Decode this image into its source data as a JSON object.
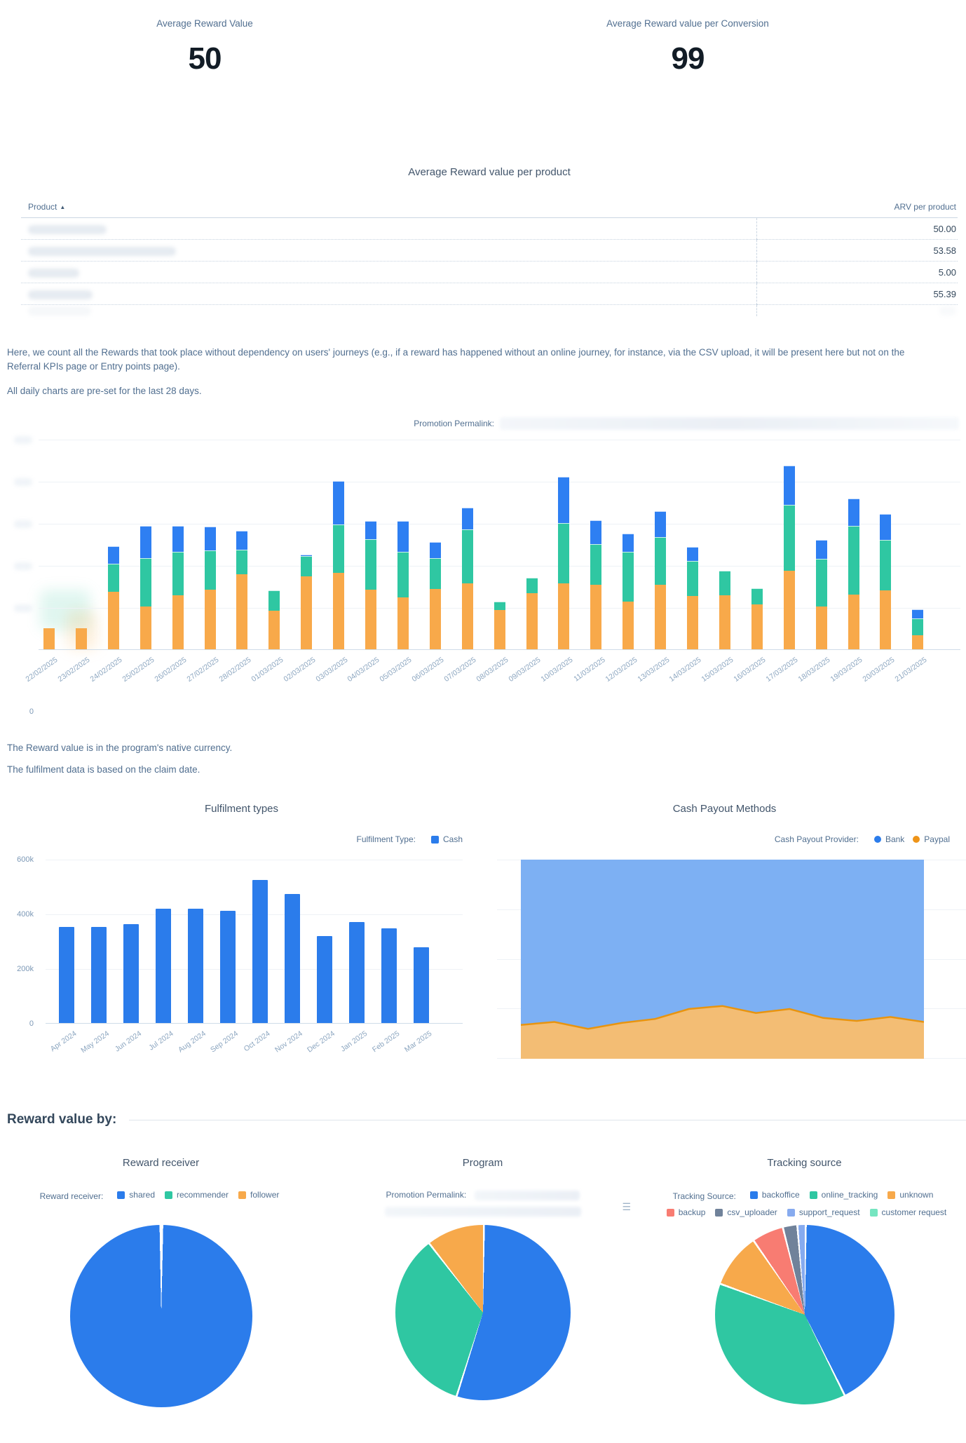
{
  "kpis": [
    {
      "label": "Average Reward Value",
      "value": "50"
    },
    {
      "label": "Average Reward value per Conversion",
      "value": "99"
    }
  ],
  "product_table": {
    "title": "Average Reward value per product",
    "col_product": "Product",
    "col_arv": "ARV per product",
    "sort_caret": "▲",
    "rows": [
      {
        "product_redacted": true,
        "blur_w": 112,
        "arv": "50.00"
      },
      {
        "product_redacted": true,
        "blur_w": 211,
        "arv": "53.58"
      },
      {
        "product_redacted": true,
        "blur_w": 73,
        "arv": "5.00"
      },
      {
        "product_redacted": true,
        "blur_w": 92,
        "arv": "55.39"
      }
    ],
    "extra_row_redacted": true
  },
  "intro": {
    "p1": "Here, we count all the Rewards that took place without dependency on users' journeys (e.g., if a reward has happened without an online journey, for instance, via the CSV upload, it will be present here but not on the Referral KPIs page or Entry points page).",
    "p2": "All daily charts are pre-set for the last 28 days."
  },
  "notes": {
    "n1": "The Reward value is in the program's native currency.",
    "n2": "The fulfilment data is based on the claim date."
  },
  "reward_value_by_heading": "Reward value by:",
  "colors": {
    "blue": "#2b7ceb",
    "green": "#2fc7a2",
    "orange": "#f7a94b",
    "area_blue": "#7db0f3",
    "area_orange": "#f3bd74",
    "area_orange_stroke": "#e8940f",
    "salmon": "#f87c72",
    "slate": "#70829a",
    "light_blue": "#87abef",
    "mint": "#75e5c0"
  },
  "chart_data": [
    {
      "id": "daily_rewards",
      "type": "bar",
      "stacked": true,
      "permalink_label": "Promotion Permalink:",
      "permalink_value_redacted": true,
      "note": "y-axis tick labels are redacted in source; values are relative units where 1.0 = one gridline, baseline label shown is 0",
      "ylim": [
        0,
        5
      ],
      "y_zero_label": "0",
      "x_label_rotation": -35,
      "categories": [
        "22/02/2025",
        "23/02/2025",
        "24/02/2025",
        "25/02/2025",
        "26/02/2025",
        "27/02/2025",
        "28/02/2025",
        "01/03/2025",
        "02/03/2025",
        "03/03/2025",
        "04/03/2025",
        "05/03/2025",
        "06/03/2025",
        "07/03/2025",
        "08/03/2025",
        "09/03/2025",
        "10/03/2025",
        "11/03/2025",
        "12/03/2025",
        "13/03/2025",
        "14/03/2025",
        "15/03/2025",
        "16/03/2025",
        "17/03/2025",
        "18/03/2025",
        "19/03/2025",
        "20/03/2025",
        "21/03/2025"
      ],
      "series": [
        {
          "name": "orange",
          "color": "#f8a94a",
          "values": [
            0.5,
            0.5,
            1.37,
            1.02,
            1.29,
            1.41,
            1.78,
            0.91,
            1.74,
            1.82,
            1.41,
            1.24,
            1.43,
            1.56,
            0.94,
            1.33,
            1.57,
            1.54,
            1.14,
            1.53,
            1.26,
            1.29,
            1.07,
            1.87,
            1.01,
            1.3,
            1.4,
            0.34
          ]
        },
        {
          "name": "green",
          "color": "#2fc7a2",
          "values": [
            0,
            0,
            0.67,
            1.15,
            1.03,
            0.94,
            0.59,
            0.48,
            0.48,
            1.15,
            1.2,
            1.08,
            0.74,
            1.29,
            0.2,
            0.37,
            1.44,
            0.97,
            1.19,
            1.14,
            0.83,
            0.58,
            0.38,
            1.56,
            1.14,
            1.63,
            1.2,
            0.4
          ]
        },
        {
          "name": "blue",
          "color": "#2e7ff2",
          "values": [
            0,
            0,
            0.42,
            0.76,
            0.61,
            0.56,
            0.45,
            0,
            0.04,
            1.03,
            0.43,
            0.74,
            0.38,
            0.51,
            0,
            0,
            1.1,
            0.56,
            0.44,
            0.62,
            0.34,
            0,
            0,
            0.93,
            0.45,
            0.65,
            0.61,
            0.21
          ]
        }
      ]
    },
    {
      "id": "fulfilment_types",
      "type": "bar",
      "title": "Fulfilment types",
      "legend": {
        "title": "Fulfilment Type:",
        "items": [
          {
            "label": "Cash",
            "color": "#2b7ceb",
            "shape": "square"
          }
        ]
      },
      "yticks": [
        "600k",
        "400k",
        "200k",
        "0"
      ],
      "ylim_k": [
        0,
        600
      ],
      "unit": "k",
      "categories": [
        "Apr 2024",
        "May 2024",
        "Jun 2024",
        "Jul 2024",
        "Aug 2024",
        "Sep 2024",
        "Oct 2024",
        "Nov 2024",
        "Dec 2024",
        "Jan 2025",
        "Feb 2025",
        "Mar 2025"
      ],
      "values_k": [
        350,
        350,
        362,
        417,
        417,
        409,
        522,
        472,
        318,
        368,
        346,
        277
      ]
    },
    {
      "id": "cash_payout_methods",
      "type": "area",
      "normalized": true,
      "title": "Cash Payout Methods",
      "legend": {
        "title": "Cash Payout Provider:",
        "items": [
          {
            "label": "Bank",
            "color": "#2b7ceb",
            "shape": "dot"
          },
          {
            "label": "Paypal",
            "color": "#ee9418",
            "shape": "dot"
          }
        ]
      },
      "series": [
        {
          "name": "Paypal",
          "percent": [
            17,
            18.5,
            15,
            18,
            20,
            25,
            26.5,
            23,
            25,
            20.5,
            19,
            21,
            18.5
          ]
        },
        {
          "name": "Bank",
          "percent": [
            83,
            81.5,
            85,
            82,
            80,
            75,
            73.5,
            77,
            75,
            79.5,
            81,
            79,
            81.5
          ]
        }
      ]
    },
    {
      "id": "reward_receiver",
      "type": "pie",
      "title": "Reward receiver",
      "legend": {
        "title": "Reward receiver:",
        "items": [
          {
            "label": "shared",
            "color": "#2b7ceb",
            "shape": "square"
          },
          {
            "label": "recommender",
            "color": "#2fc7a2",
            "shape": "square"
          },
          {
            "label": "follower",
            "color": "#f7a94b",
            "shape": "square"
          }
        ]
      },
      "slices": [
        {
          "label": "shared",
          "pct": 99.7,
          "color": "#2b7ceb"
        },
        {
          "label": "recommender",
          "pct": 0.2,
          "color": "#2fc7a2"
        },
        {
          "label": "follower",
          "pct": 0.1,
          "color": "#f7a94b"
        }
      ]
    },
    {
      "id": "program",
      "type": "pie",
      "title": "Program",
      "legend_title": "Promotion Permalink:",
      "legend_values_redacted": true,
      "slices": [
        {
          "label": "redacted_1",
          "pct": 54.7,
          "color": "#2b7ceb"
        },
        {
          "label": "redacted_2",
          "pct": 34.6,
          "color": "#2fc7a2"
        },
        {
          "label": "redacted_3",
          "pct": 10.7,
          "color": "#f7a94b"
        }
      ]
    },
    {
      "id": "tracking_source",
      "type": "pie",
      "title": "Tracking source",
      "legend_rows": [
        {
          "title": "Tracking Source:",
          "items": [
            {
              "label": "backoffice",
              "color": "#2b7ceb",
              "shape": "square"
            },
            {
              "label": "online_tracking",
              "color": "#2fc7a2",
              "shape": "square"
            },
            {
              "label": "unknown",
              "color": "#f7a94b",
              "shape": "square"
            }
          ]
        },
        {
          "items": [
            {
              "label": "backup",
              "color": "#f87c72",
              "shape": "square"
            },
            {
              "label": "csv_uploader",
              "color": "#70829a",
              "shape": "square"
            },
            {
              "label": "support_request",
              "color": "#87abef",
              "shape": "square"
            },
            {
              "label": "customer request",
              "color": "#75e5c0",
              "shape": "square"
            }
          ]
        }
      ],
      "slices": [
        {
          "label": "backoffice",
          "pct": 42.5,
          "color": "#2b7ceb"
        },
        {
          "label": "online_tracking",
          "pct": 37.9,
          "color": "#2fc7a2"
        },
        {
          "label": "unknown",
          "pct": 9.8,
          "color": "#f7a94b"
        },
        {
          "label": "backup",
          "pct": 5.7,
          "color": "#f87c72"
        },
        {
          "label": "csv_uploader",
          "pct": 2.6,
          "color": "#70829a"
        },
        {
          "label": "support_request",
          "pct": 1.5,
          "color": "#87abef"
        },
        {
          "label": "customer request",
          "pct": 0,
          "color": "#75e5c0"
        }
      ]
    }
  ]
}
